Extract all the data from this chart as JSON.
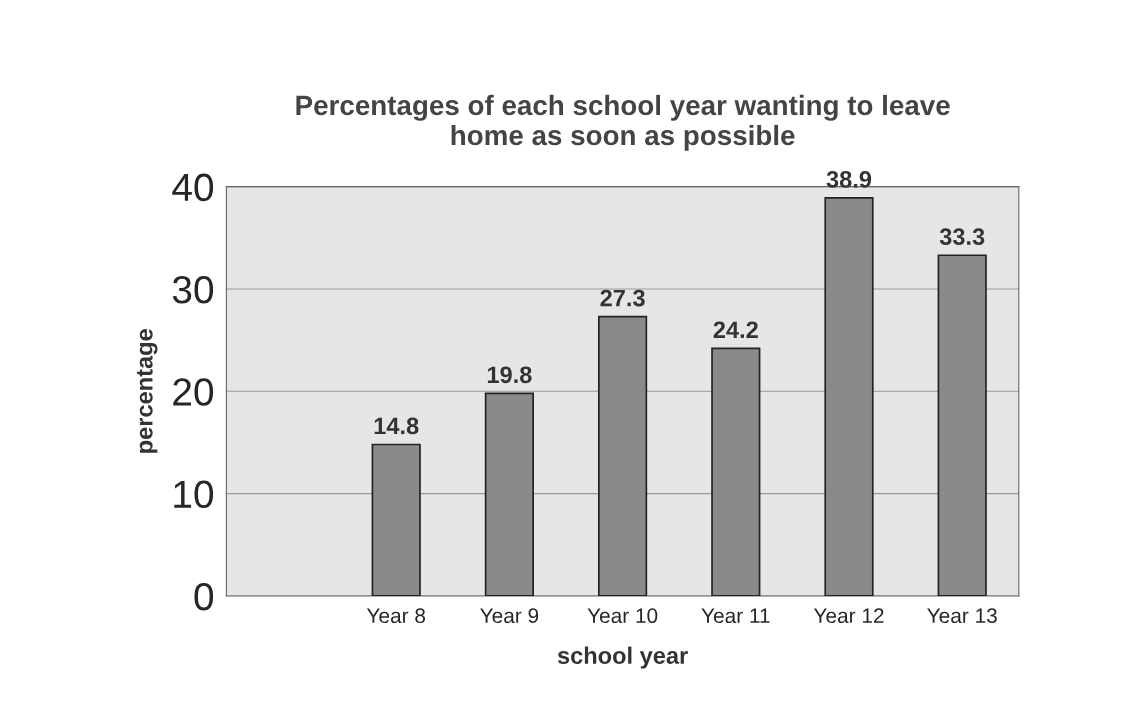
{
  "chart_data": {
    "type": "bar",
    "title": "Percentages of each school year wanting to leave\nhome as soon as possible",
    "xlabel": "school year",
    "ylabel": "percentage",
    "categories": [
      null,
      "Year 8",
      "Year 9",
      "Year 10",
      "Year 11",
      "Year 12",
      "Year 13"
    ],
    "values": [
      null,
      14.8,
      19.8,
      27.3,
      24.2,
      38.9,
      33.3
    ],
    "color": "#8a8a8a",
    "ylim": [
      0,
      40
    ],
    "yticks": [
      0,
      10,
      20,
      30,
      40
    ],
    "grid": "y",
    "data_labels": true
  }
}
